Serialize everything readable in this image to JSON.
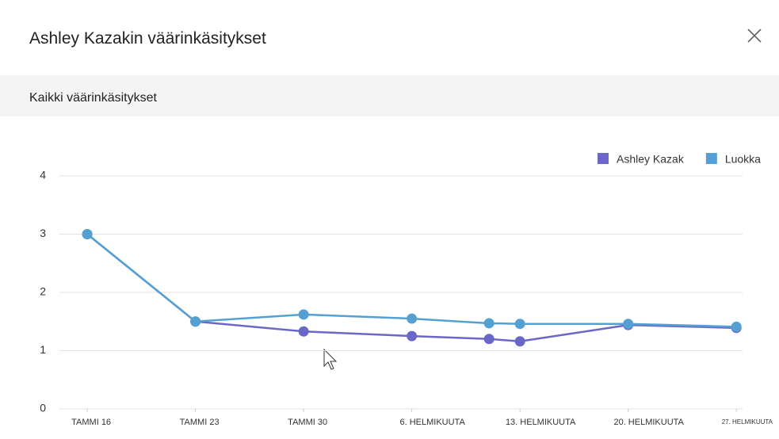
{
  "dialog": {
    "title": "Ashley Kazakin väärinkäsitykset",
    "section": "Kaikki väärinkäsitykset"
  },
  "chart_data": {
    "type": "line",
    "x": [
      16,
      23,
      30,
      37,
      42,
      44,
      51,
      58
    ],
    "xlim": [
      14.2,
      58.4
    ],
    "xticks": [
      {
        "value": 16,
        "label": "TAMMI 16"
      },
      {
        "value": 23,
        "label": "TAMMI 23"
      },
      {
        "value": 30,
        "label": "TAMMI 30"
      },
      {
        "value": 37,
        "label": "6. HELMIKUUTA"
      },
      {
        "value": 44,
        "label": "13. HELMIKUUTA"
      },
      {
        "value": 51,
        "label": "20. HELMIKUUTA"
      },
      {
        "value": 58,
        "label": "27. HELMIKUUTA"
      }
    ],
    "ylim": [
      0,
      4
    ],
    "yticks": [
      0,
      1,
      2,
      3,
      4
    ],
    "grid": true,
    "legend": "top-right",
    "series": [
      {
        "name": "Ashley Kazak",
        "color": "#6a67c8",
        "values": [
          3,
          1.5,
          1.33,
          1.25,
          1.2,
          1.16,
          1.44,
          1.39
        ]
      },
      {
        "name": "Luokka",
        "color": "#55a0d2",
        "values": [
          3,
          1.5,
          1.62,
          1.55,
          1.47,
          1.46,
          1.46,
          1.41
        ]
      }
    ]
  }
}
